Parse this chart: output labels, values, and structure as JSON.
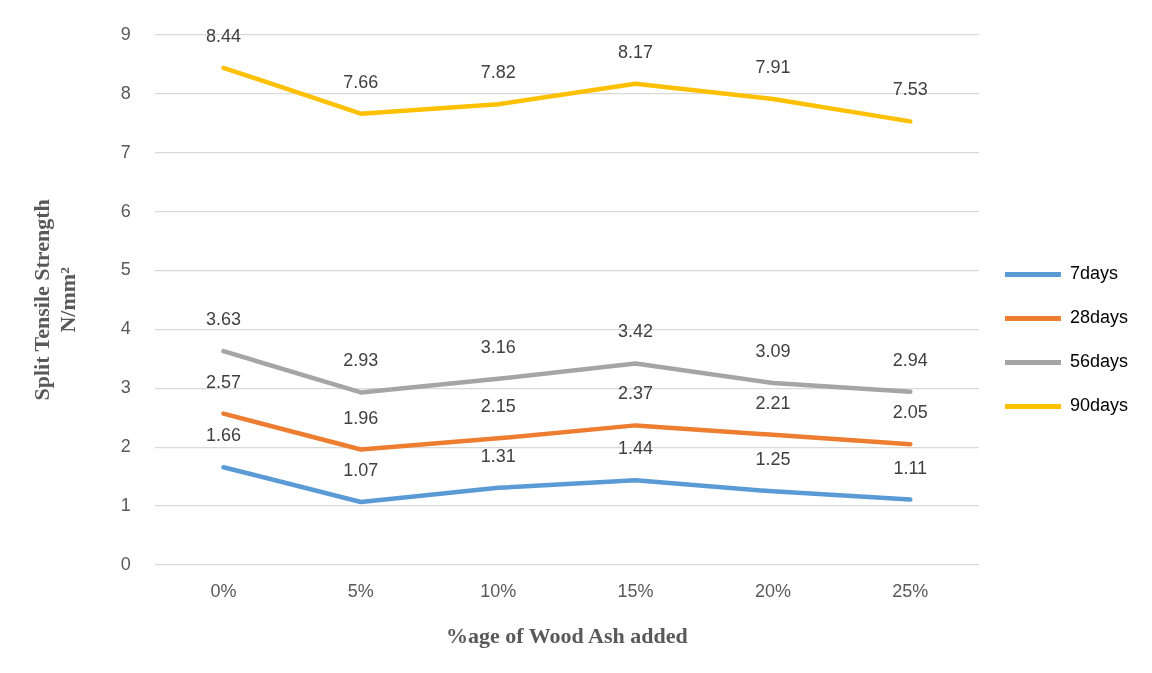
{
  "chart_data": {
    "type": "line",
    "xlabel": "%age of Wood Ash added",
    "ylabel": "Split Tensile Strength N/mm²",
    "categories": [
      "0%",
      "5%",
      "10%",
      "15%",
      "20%",
      "25%"
    ],
    "series": [
      {
        "name": "7days",
        "color": "#5b9bd5",
        "values": [
          1.66,
          1.07,
          1.31,
          1.44,
          1.25,
          1.11
        ]
      },
      {
        "name": "28days",
        "color": "#ed7d31",
        "values": [
          2.57,
          1.96,
          2.15,
          2.37,
          2.21,
          2.05
        ]
      },
      {
        "name": "56days",
        "color": "#a5a5a5",
        "values": [
          3.63,
          2.93,
          3.16,
          3.42,
          3.09,
          2.94
        ]
      },
      {
        "name": "90days",
        "color": "#ffc000",
        "values": [
          8.44,
          7.66,
          7.82,
          8.17,
          7.91,
          7.53
        ]
      }
    ],
    "ylim": [
      0,
      9
    ],
    "yticks": [
      0,
      1,
      2,
      3,
      4,
      5,
      6,
      7,
      8,
      9
    ],
    "grid": "y",
    "legend": "right",
    "marker": "none",
    "line_style": "solid",
    "data_labels": true
  }
}
